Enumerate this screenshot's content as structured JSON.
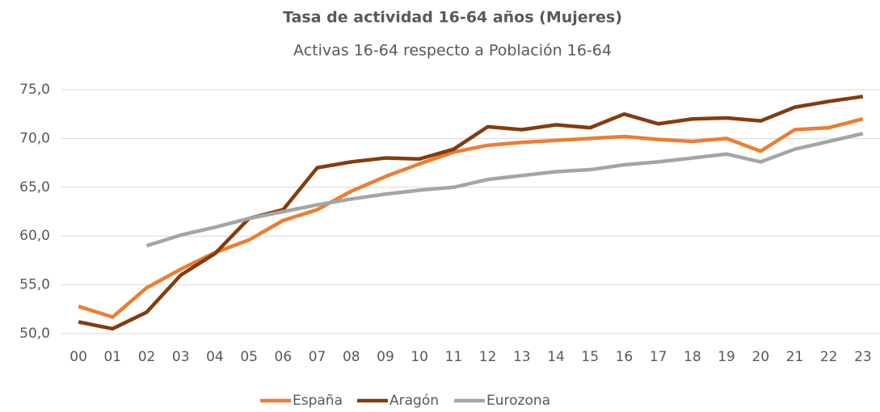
{
  "chart_data": {
    "type": "line",
    "title": "Tasa de actividad 16-64 años (Mujeres)",
    "subtitle": "Activas 16-64 respecto a Población 16-64",
    "categories": [
      "00",
      "01",
      "02",
      "03",
      "04",
      "05",
      "06",
      "07",
      "08",
      "09",
      "10",
      "11",
      "12",
      "13",
      "14",
      "15",
      "16",
      "17",
      "18",
      "19",
      "20",
      "21",
      "22",
      "23"
    ],
    "series": [
      {
        "name": "España",
        "color": "#ed7d31",
        "values": [
          52.8,
          51.7,
          54.7,
          56.6,
          58.3,
          59.6,
          61.6,
          62.7,
          64.6,
          66.1,
          67.4,
          68.6,
          69.3,
          69.6,
          69.8,
          70.0,
          70.2,
          69.9,
          69.7,
          70.0,
          68.7,
          70.9,
          71.1,
          72.0
        ]
      },
      {
        "name": "Aragón",
        "color": "#843c0c",
        "values": [
          51.2,
          50.5,
          52.2,
          56.0,
          58.2,
          61.8,
          62.7,
          67.0,
          67.6,
          68.0,
          67.9,
          68.9,
          71.2,
          70.9,
          71.4,
          71.1,
          72.5,
          71.5,
          72.0,
          72.1,
          71.8,
          73.2,
          73.8,
          74.3
        ]
      },
      {
        "name": "Eurozona",
        "color": "#a5a5a5",
        "values": [
          null,
          null,
          59.0,
          60.1,
          60.9,
          61.8,
          62.5,
          63.2,
          63.8,
          64.3,
          64.7,
          65.0,
          65.8,
          66.2,
          66.6,
          66.8,
          67.3,
          67.6,
          68.0,
          68.4,
          67.6,
          68.9,
          69.7,
          70.5
        ]
      }
    ],
    "ylim": [
      50,
      75
    ],
    "yticks": [
      {
        "value": 50,
        "label": "50,0"
      },
      {
        "value": 55,
        "label": "55,0"
      },
      {
        "value": 60,
        "label": "60,0"
      },
      {
        "value": 65,
        "label": "65,0"
      },
      {
        "value": 70,
        "label": "70,0"
      },
      {
        "value": 75,
        "label": "75,0"
      }
    ],
    "grid": true,
    "legend": "bottom"
  }
}
